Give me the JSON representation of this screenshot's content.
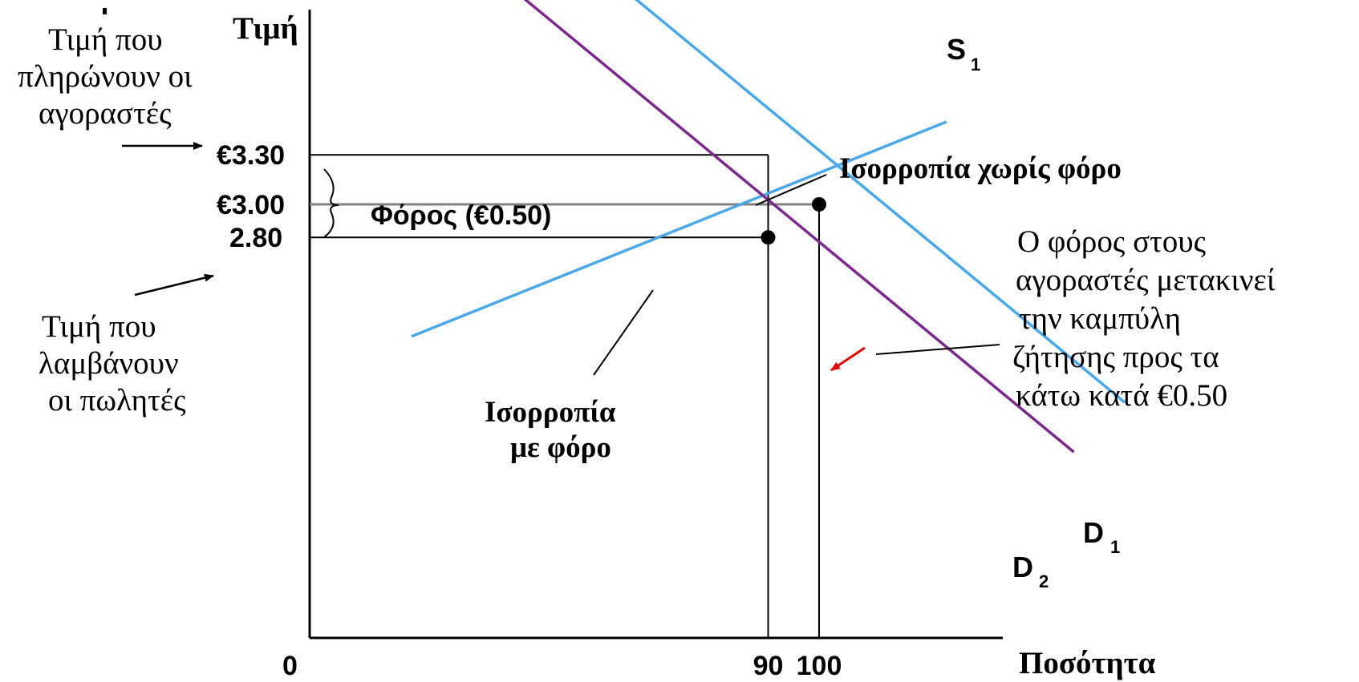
{
  "chart_data": {
    "type": "line",
    "ylabel": "Τιμή",
    "xlabel": "Ποσότητα",
    "origin_label": "0",
    "x_ticks": [
      {
        "value": 90,
        "label": "90"
      },
      {
        "value": 100,
        "label": "100"
      }
    ],
    "y_ticks": [
      {
        "value": 3.3,
        "label": "€3.30"
      },
      {
        "value": 3.0,
        "label": "€3.00"
      },
      {
        "value": 2.8,
        "label": "2.80"
      }
    ],
    "series": [
      {
        "name": "S",
        "subscript": "1",
        "color": "#4aa8e8",
        "points": [
          [
            20,
            2.2
          ],
          [
            125,
            3.5
          ]
        ]
      },
      {
        "name": "D",
        "subscript": "1",
        "color": "#4aa8e8",
        "points": [
          [
            50,
            4.6
          ],
          [
            160,
            1.8
          ]
        ]
      },
      {
        "name": "D",
        "subscript": "2",
        "color": "#7b2a8c",
        "points": [
          [
            40,
            4.3
          ],
          [
            150,
            1.5
          ]
        ]
      }
    ],
    "equilibria": [
      {
        "x": 100,
        "y": 3.0
      },
      {
        "x": 90,
        "y": 2.8
      }
    ],
    "tax_label": "Φόρος (€0.50)",
    "annotations": {
      "buyers_price": [
        "Τιμή που",
        "πληρώνουν οι",
        "αγοραστές"
      ],
      "sellers_price": [
        "Τιμή που",
        "λαμβάνουν",
        "οι πωλητές"
      ],
      "eq_no_tax": "Ισορροπία χωρίς φόρο",
      "eq_with_tax": [
        "Ισορροπία",
        "με φόρο"
      ],
      "shift_note": [
        "Ο φόρος στους",
        "αγοραστές μετακινεί",
        "την καμπύλη",
        "ζήτησης προς τα",
        "κάτω κατά €0.50"
      ]
    },
    "colors": {
      "axis": "#000000",
      "supply": "#4aa8e8",
      "demand2": "#7b2a8c",
      "arrow_red": "#e00000",
      "tax_line": "#808080"
    }
  }
}
